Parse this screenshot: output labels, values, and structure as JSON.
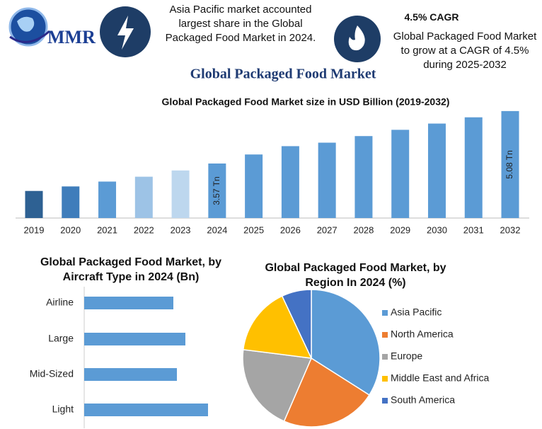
{
  "header": {
    "logo": "MMR",
    "share_text": "Asia Pacific market accounted largest share in the Global Packaged Food Market in 2024.",
    "cagr_title": "4.5% CAGR",
    "cagr_text": "Global Packaged Food Market to grow at a CAGR of 4.5% during 2025-2032",
    "title": "Global Packaged Food Market"
  },
  "chart_data": [
    {
      "type": "bar",
      "title": "Global Packaged Food Market size in USD Billion (2019-2032)",
      "categories": [
        "2019",
        "2020",
        "2021",
        "2022",
        "2023",
        "2024",
        "2025",
        "2026",
        "2027",
        "2028",
        "2029",
        "2030",
        "2031",
        "2032"
      ],
      "values": [
        2.78,
        2.91,
        3.05,
        3.19,
        3.37,
        3.57,
        3.83,
        4.07,
        4.17,
        4.36,
        4.54,
        4.72,
        4.9,
        5.08
      ],
      "value_labels": [
        null,
        null,
        null,
        null,
        null,
        "3.57 Tn",
        null,
        null,
        null,
        null,
        null,
        null,
        null,
        "5.08 Tn"
      ],
      "colors": [
        "#2e6193",
        "#3f7dbb",
        "#5b9bd5",
        "#9dc3e6",
        "#bdd7ee",
        "#5b9bd5",
        "#5b9bd5",
        "#5b9bd5",
        "#5b9bd5",
        "#5b9bd5",
        "#5b9bd5",
        "#5b9bd5",
        "#5b9bd5",
        "#5b9bd5"
      ],
      "ylim": [
        2,
        5.2
      ]
    },
    {
      "type": "hbar",
      "title": "Global Packaged Food Market, by Aircraft Type in 2024 (Bn)",
      "categories": [
        "Airline",
        "Large",
        "Mid-Sized",
        "Light"
      ],
      "values": [
        126,
        143,
        131,
        175
      ],
      "color": "#5b9bd5",
      "xlim": [
        0,
        200
      ]
    },
    {
      "type": "pie",
      "title": "Global Packaged Food Market, by Region In 2024 (%)",
      "categories": [
        "Asia Pacific",
        "North America",
        "Europe",
        "Middle East and Africa",
        "South America"
      ],
      "values": [
        34,
        22.5,
        20.5,
        16,
        7
      ],
      "colors": [
        "#5b9bd5",
        "#ed7d31",
        "#a5a5a5",
        "#ffc000",
        "#4472c4"
      ],
      "legend": "right"
    }
  ]
}
